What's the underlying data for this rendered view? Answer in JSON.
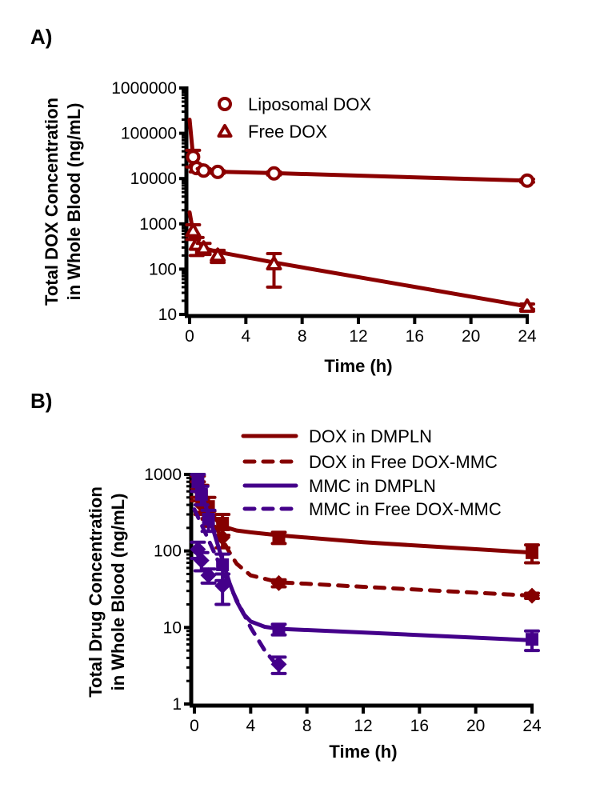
{
  "chart_data": [
    {
      "panel_label": "A)",
      "type": "scatter",
      "title": "",
      "xlabel": "Time (h)",
      "ylabel_lines": [
        "Total DOX Concentration",
        "in Whole Blood (ng/mL)"
      ],
      "xlim": [
        0,
        24
      ],
      "xticks": [
        0,
        4,
        8,
        12,
        16,
        20,
        24
      ],
      "xtick_labels": [
        "0",
        "4",
        "8",
        "12",
        "16",
        "20",
        "24"
      ],
      "yscale": "log",
      "ylim": [
        10,
        1000000
      ],
      "yticks": [
        10,
        100,
        1000,
        10000,
        100000,
        1000000
      ],
      "ytick_labels": [
        "10",
        "100",
        "1000",
        "10000",
        "100000",
        "1000000"
      ],
      "grid": false,
      "legend_position": "top-right",
      "series": [
        {
          "name": "Liposomal DOX",
          "marker": "circle-open",
          "color": "#8B0000",
          "x": [
            0.25,
            0.5,
            1,
            2,
            6,
            24
          ],
          "y": [
            30000,
            17000,
            15000,
            14000,
            13000,
            9000
          ],
          "err": [
            12000,
            3000,
            1500,
            1000,
            1000,
            700
          ],
          "fit": {
            "x": [
              0,
              0.25,
              0.5,
              1,
              2,
              6,
              24
            ],
            "y": [
              200000,
              30000,
              16500,
              15000,
              14200,
              13200,
              9000
            ]
          }
        },
        {
          "name": "Free DOX",
          "marker": "triangle-open",
          "color": "#8B0000",
          "x": [
            0.25,
            0.5,
            1,
            2,
            6,
            24
          ],
          "y": [
            700,
            350,
            290,
            200,
            130,
            15
          ],
          "err": [
            250,
            150,
            80,
            60,
            90,
            2
          ],
          "fit": {
            "x": [
              0,
              0.25,
              0.5,
              1,
              2,
              6,
              24
            ],
            "y": [
              1800,
              650,
              380,
              290,
              240,
              140,
              15
            ]
          }
        }
      ]
    },
    {
      "panel_label": "B)",
      "type": "scatter",
      "title": "",
      "xlabel": "Time (h)",
      "ylabel_lines": [
        "Total Drug Concentration",
        "in Whole Blood (ng/mL)"
      ],
      "xlim": [
        0,
        24
      ],
      "xticks": [
        0,
        4,
        8,
        12,
        16,
        20,
        24
      ],
      "xtick_labels": [
        "0",
        "4",
        "8",
        "12",
        "16",
        "20",
        "24"
      ],
      "yscale": "log",
      "ylim": [
        1,
        1000
      ],
      "yticks": [
        1,
        10,
        100,
        1000
      ],
      "ytick_labels": [
        "1",
        "10",
        "100",
        "1000"
      ],
      "grid": false,
      "legend_position": "top-right",
      "series": [
        {
          "name": "DOX in DMPLN",
          "line": "solid",
          "marker": "square",
          "color": "#850000",
          "x": [
            0.25,
            0.5,
            1,
            2,
            6,
            24
          ],
          "y": [
            700,
            520,
            380,
            230,
            150,
            95
          ],
          "err": [
            250,
            200,
            120,
            70,
            25,
            25
          ],
          "fit": {
            "x": [
              0,
              0.5,
              1,
              1.5,
              2,
              3,
              4,
              6,
              12,
              24
            ],
            "y": [
              950,
              600,
              380,
              260,
              210,
              185,
              175,
              160,
              130,
              95
            ]
          }
        },
        {
          "name": "DOX in Free DOX-MMC",
          "line": "dashed",
          "marker": "diamond",
          "color": "#850000",
          "x": [
            0.25,
            0.5,
            1,
            2,
            6,
            24
          ],
          "y": [
            650,
            400,
            270,
            150,
            38,
            26
          ],
          "err": [
            150,
            100,
            60,
            40,
            4,
            2
          ],
          "fit": {
            "x": [
              0,
              0.5,
              1,
              1.5,
              2,
              2.5,
              3,
              4,
              6,
              12,
              24
            ],
            "y": [
              900,
              520,
              330,
              210,
              140,
              95,
              68,
              48,
              39,
              34,
              26
            ]
          }
        },
        {
          "name": "MMC in DMPLN",
          "line": "solid",
          "marker": "square",
          "color": "#44008A",
          "x": [
            0.25,
            0.5,
            1,
            2,
            6,
            24
          ],
          "y": [
            800,
            550,
            260,
            66,
            9.5,
            7
          ],
          "err": [
            200,
            150,
            80,
            25,
            1.5,
            2
          ],
          "fit": {
            "x": [
              0,
              0.5,
              1,
              1.5,
              2,
              2.5,
              3,
              3.5,
              4,
              5,
              6,
              12,
              24
            ],
            "y": [
              950,
              560,
              300,
              150,
              75,
              38,
              22,
              15,
              12,
              10.2,
              9.6,
              8.6,
              6.8
            ]
          }
        },
        {
          "name": "MMC in Free DOX-MMC",
          "line": "dashed",
          "marker": "diamond",
          "color": "#44008A",
          "x": [
            0.25,
            0.5,
            1,
            2,
            6
          ],
          "y": [
            105,
            75,
            48,
            35,
            3.3
          ],
          "err": [
            25,
            20,
            10,
            15,
            0.8
          ],
          "fit": {
            "x": [
              0,
              1,
              2,
              3,
              4,
              5,
              6
            ],
            "y": [
              350,
              140,
              55,
              23,
              10,
              5,
              3
            ]
          }
        }
      ]
    }
  ]
}
